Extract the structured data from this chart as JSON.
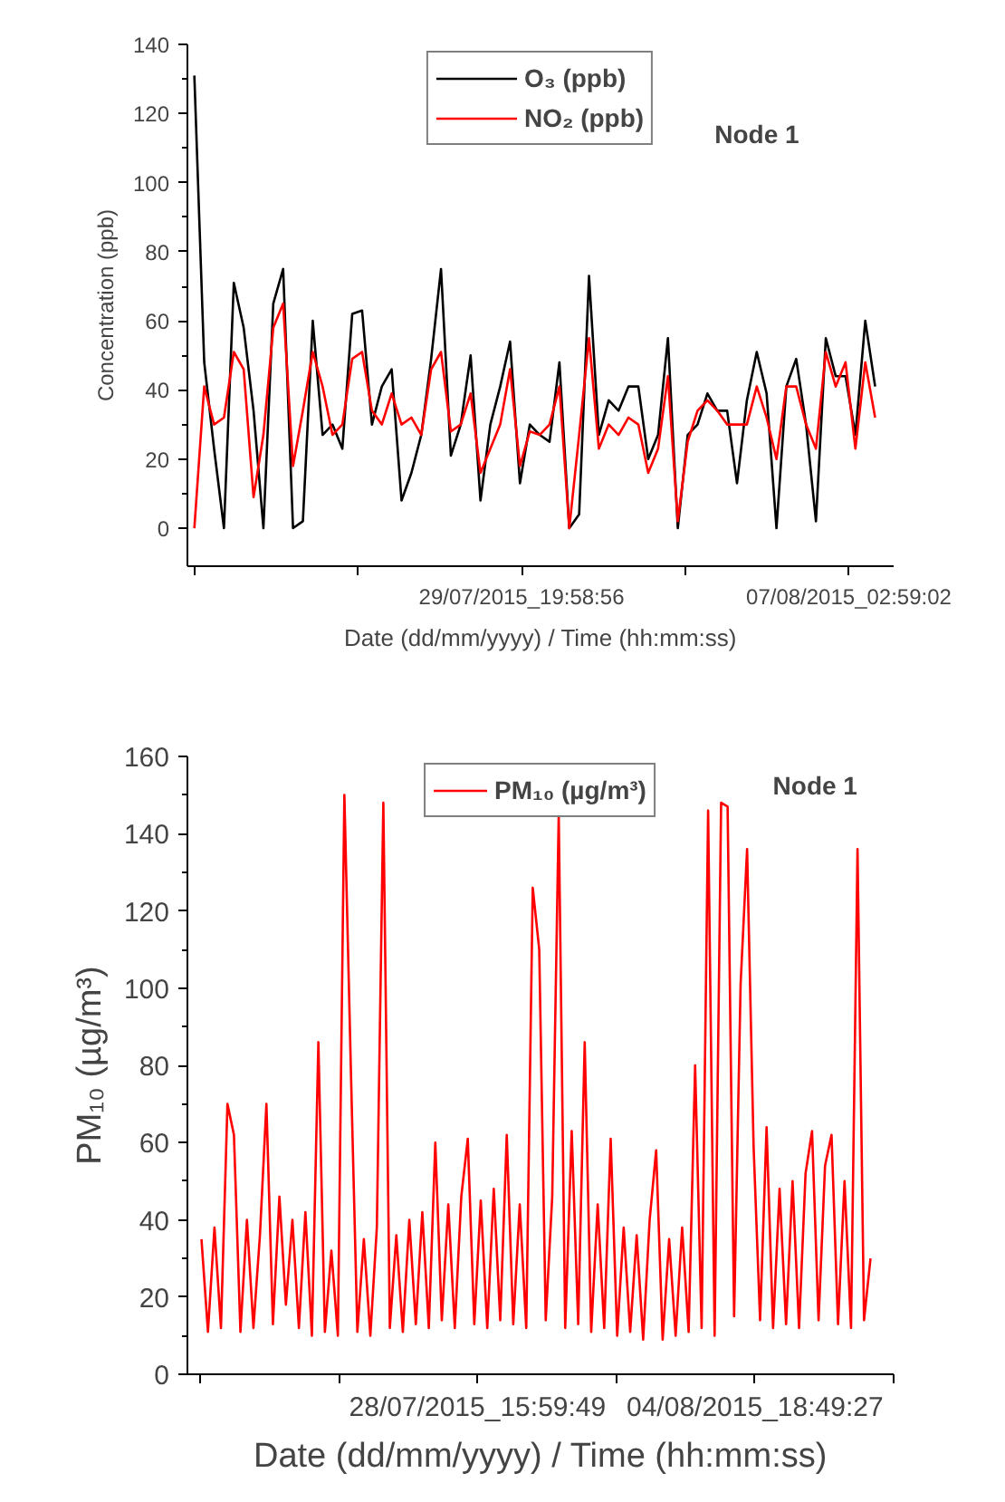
{
  "chart_data": [
    {
      "type": "line",
      "xlabel": "Date (dd/mm/yyyy) / Time (hh:mm:ss)",
      "ylabel": "Concentration (ppb)",
      "annotations": [
        "Node 1"
      ],
      "legend": "top",
      "x": [
        "2015-07-21T13:00",
        "2015-07-21T19:00",
        "2015-07-22T01:00",
        "2015-07-22T07:00",
        "2015-07-22T13:00",
        "2015-07-22T19:00",
        "2015-07-23T01:00",
        "2015-07-23T07:00",
        "2015-07-23T13:00",
        "2015-07-23T19:00",
        "2015-07-24T01:00",
        "2015-07-24T07:00",
        "2015-07-24T13:00",
        "2015-07-24T19:00",
        "2015-07-25T01:00",
        "2015-07-25T07:00",
        "2015-07-25T13:00",
        "2015-07-25T19:00",
        "2015-07-26T01:00",
        "2015-07-26T07:00",
        "2015-07-26T13:00",
        "2015-07-26T19:00",
        "2015-07-27T01:00",
        "2015-07-27T07:00",
        "2015-07-27T13:00",
        "2015-07-27T19:00",
        "2015-07-28T01:00",
        "2015-07-28T07:00",
        "2015-07-28T13:00",
        "2015-07-28T19:00",
        "2015-07-29T01:00",
        "2015-07-29T07:00",
        "2015-07-29T13:00",
        "2015-07-29T19:00",
        "2015-07-30T01:00",
        "2015-07-30T07:00",
        "2015-07-30T13:00",
        "2015-07-30T19:00",
        "2015-07-31T01:00",
        "2015-07-31T07:00",
        "2015-07-31T13:00",
        "2015-07-31T19:00",
        "2015-08-01T01:00",
        "2015-08-01T07:00",
        "2015-08-01T13:00",
        "2015-08-01T19:00",
        "2015-08-02T01:00",
        "2015-08-02T07:00",
        "2015-08-02T13:00",
        "2015-08-02T19:00",
        "2015-08-03T01:00",
        "2015-08-03T07:00",
        "2015-08-03T13:00",
        "2015-08-03T19:00",
        "2015-08-04T01:00",
        "2015-08-04T07:00",
        "2015-08-04T13:00",
        "2015-08-04T19:00",
        "2015-08-05T01:00",
        "2015-08-05T07:00",
        "2015-08-05T13:00",
        "2015-08-05T19:00",
        "2015-08-06T01:00",
        "2015-08-06T07:00",
        "2015-08-06T13:00",
        "2015-08-06T19:00",
        "2015-08-07T01:00",
        "2015-08-07T07:00",
        "2015-08-07T13:00",
        "2015-08-07T19:00"
      ],
      "series": [
        {
          "name": "O₃ (ppb)",
          "color": "#000000",
          "values": [
            131,
            48,
            23,
            0,
            71,
            58,
            34,
            0,
            65,
            75,
            0,
            2,
            60,
            27,
            30,
            23,
            62,
            63,
            30,
            41,
            46,
            8,
            16,
            27,
            49,
            75,
            21,
            30,
            50,
            8,
            30,
            41,
            54,
            13,
            30,
            27,
            25,
            48,
            0,
            4,
            73,
            27,
            37,
            34,
            41,
            41,
            20,
            27,
            55,
            0,
            27,
            30,
            39,
            34,
            34,
            13,
            37,
            51,
            39,
            0,
            41,
            49,
            30,
            2,
            55,
            44,
            44,
            27,
            60,
            41
          ]
        },
        {
          "name": "NO₂ (ppb)",
          "color": "#ff0000",
          "values": [
            0,
            41,
            30,
            32,
            51,
            46,
            9,
            27,
            58,
            65,
            18,
            34,
            51,
            41,
            27,
            30,
            49,
            51,
            34,
            30,
            39,
            30,
            32,
            27,
            46,
            51,
            28,
            30,
            39,
            16,
            23,
            30,
            46,
            18,
            28,
            27,
            30,
            41,
            0,
            27,
            55,
            23,
            30,
            27,
            32,
            30,
            16,
            23,
            44,
            2,
            25,
            34,
            37,
            34,
            30,
            30,
            30,
            41,
            32,
            20,
            41,
            41,
            30,
            23,
            51,
            41,
            48,
            23,
            48,
            32
          ]
        }
      ],
      "xlim": [
        "2015-07-21T08:47",
        "2015-08-08T06:15"
      ],
      "xticks": [
        {
          "value": "2015-07-21T12:58:50",
          "label": null
        },
        {
          "value": "2015-07-25T16:28:53",
          "label": null
        },
        {
          "value": "2015-07-29T19:58:56",
          "label": "29/07/2015_19:58:56"
        },
        {
          "value": "2015-08-02T23:28:59",
          "label": null
        },
        {
          "value": "2015-08-07T02:59:02",
          "label": "07/08/2015_02:59:02"
        }
      ],
      "ylim": [
        -11,
        140
      ],
      "yticks": [
        0,
        20,
        40,
        60,
        80,
        100,
        120,
        140
      ]
    },
    {
      "type": "line",
      "xlabel": "Date (dd/mm/yyyy) / Time (hh:mm:ss)",
      "ylabel": "PM₁₀ (µg/m³)",
      "annotations": [
        "Node 1"
      ],
      "legend": "top",
      "x": [
        "2015-07-21T14:00",
        "2015-07-21T18:00",
        "2015-07-21T22:00",
        "2015-07-22T02:00",
        "2015-07-22T06:00",
        "2015-07-22T10:00",
        "2015-07-22T14:00",
        "2015-07-22T18:00",
        "2015-07-22T22:00",
        "2015-07-23T02:00",
        "2015-07-23T06:00",
        "2015-07-23T10:00",
        "2015-07-23T14:00",
        "2015-07-23T18:00",
        "2015-07-23T22:00",
        "2015-07-24T02:00",
        "2015-07-24T06:00",
        "2015-07-24T10:00",
        "2015-07-24T14:00",
        "2015-07-24T18:00",
        "2015-07-24T22:00",
        "2015-07-25T02:00",
        "2015-07-25T06:00",
        "2015-07-25T10:00",
        "2015-07-25T14:00",
        "2015-07-25T18:00",
        "2015-07-25T22:00",
        "2015-07-26T02:00",
        "2015-07-26T06:00",
        "2015-07-26T10:00",
        "2015-07-26T14:00",
        "2015-07-26T18:00",
        "2015-07-26T22:00",
        "2015-07-27T02:00",
        "2015-07-27T06:00",
        "2015-07-27T10:00",
        "2015-07-27T14:00",
        "2015-07-27T18:00",
        "2015-07-27T22:00",
        "2015-07-28T02:00",
        "2015-07-28T06:00",
        "2015-07-28T10:00",
        "2015-07-28T14:00",
        "2015-07-28T18:00",
        "2015-07-28T22:00",
        "2015-07-29T02:00",
        "2015-07-29T06:00",
        "2015-07-29T10:00",
        "2015-07-29T14:00",
        "2015-07-29T18:00",
        "2015-07-29T22:00",
        "2015-07-30T02:00",
        "2015-07-30T06:00",
        "2015-07-30T10:00",
        "2015-07-30T14:00",
        "2015-07-30T18:00",
        "2015-07-30T22:00",
        "2015-07-31T02:00",
        "2015-07-31T06:00",
        "2015-07-31T10:00",
        "2015-07-31T14:00",
        "2015-07-31T18:00",
        "2015-07-31T22:00",
        "2015-08-01T02:00",
        "2015-08-01T06:00",
        "2015-08-01T10:00",
        "2015-08-01T14:00",
        "2015-08-01T18:00",
        "2015-08-01T22:00",
        "2015-08-02T02:00",
        "2015-08-02T06:00",
        "2015-08-02T10:00",
        "2015-08-02T14:00",
        "2015-08-02T18:00",
        "2015-08-02T22:00",
        "2015-08-03T02:00",
        "2015-08-03T06:00",
        "2015-08-03T10:00",
        "2015-08-03T14:00",
        "2015-08-03T18:00",
        "2015-08-03T22:00",
        "2015-08-04T02:00",
        "2015-08-04T06:00",
        "2015-08-04T10:00",
        "2015-08-04T14:00",
        "2015-08-04T18:00",
        "2015-08-04T22:00",
        "2015-08-05T02:00",
        "2015-08-05T06:00",
        "2015-08-05T10:00",
        "2015-08-05T14:00",
        "2015-08-05T18:00",
        "2015-08-05T22:00",
        "2015-08-06T02:00",
        "2015-08-06T06:00",
        "2015-08-06T10:00",
        "2015-08-06T14:00",
        "2015-08-06T18:00",
        "2015-08-06T22:00",
        "2015-08-07T02:00",
        "2015-08-07T06:00",
        "2015-08-07T10:00",
        "2015-08-07T14:00",
        "2015-08-07T18:00"
      ],
      "series": [
        {
          "name": "PM₁₀ (µg/m³)",
          "color": "#ff0000",
          "values": [
            35,
            11,
            38,
            12,
            70,
            62,
            11,
            40,
            12,
            36,
            70,
            13,
            46,
            18,
            40,
            12,
            42,
            10,
            86,
            11,
            32,
            10,
            150,
            79,
            11,
            35,
            10,
            38,
            148,
            12,
            36,
            11,
            40,
            13,
            42,
            12,
            60,
            14,
            44,
            12,
            46,
            61,
            13,
            45,
            12,
            48,
            14,
            62,
            13,
            44,
            12,
            126,
            110,
            14,
            46,
            145,
            12,
            63,
            13,
            86,
            11,
            44,
            12,
            61,
            10,
            38,
            11,
            36,
            9,
            40,
            58,
            9,
            35,
            10,
            38,
            11,
            80,
            12,
            146,
            10,
            148,
            147,
            15,
            101,
            136,
            59,
            14,
            64,
            12,
            48,
            13,
            50,
            12,
            52,
            63,
            14,
            54,
            62,
            13,
            50,
            12,
            136,
            14,
            30
          ]
        }
      ],
      "xlim": [
        "2015-07-21T05:21",
        "2015-08-08T08:14:16"
      ],
      "xticks": [
        {
          "value": "2015-07-21T13:10:11",
          "label": null
        },
        {
          "value": "2015-07-25T02:35:00",
          "label": null
        },
        {
          "value": "2015-07-28T15:59:49",
          "label": "28/07/2015_15:59:49"
        },
        {
          "value": "2015-08-01T05:24:38",
          "label": null
        },
        {
          "value": "2015-08-04T18:49:27",
          "label": "04/08/2015_18:49:27"
        },
        {
          "value": "2015-08-08T08:14:16",
          "label": null
        }
      ],
      "ylim": [
        0,
        160
      ],
      "yticks": [
        0,
        20,
        40,
        60,
        80,
        100,
        120,
        140,
        160
      ]
    }
  ]
}
